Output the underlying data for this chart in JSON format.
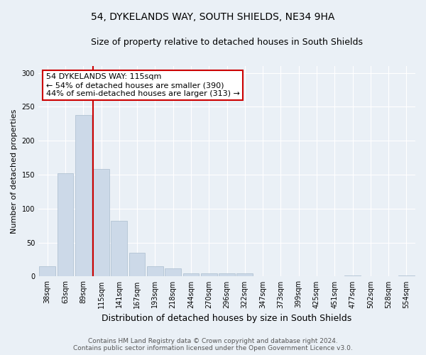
{
  "title": "54, DYKELANDS WAY, SOUTH SHIELDS, NE34 9HA",
  "subtitle": "Size of property relative to detached houses in South Shields",
  "xlabel": "Distribution of detached houses by size in South Shields",
  "ylabel": "Number of detached properties",
  "categories": [
    "38sqm",
    "63sqm",
    "89sqm",
    "115sqm",
    "141sqm",
    "167sqm",
    "193sqm",
    "218sqm",
    "244sqm",
    "270sqm",
    "296sqm",
    "322sqm",
    "347sqm",
    "373sqm",
    "399sqm",
    "425sqm",
    "451sqm",
    "477sqm",
    "502sqm",
    "528sqm",
    "554sqm"
  ],
  "values": [
    15,
    152,
    238,
    158,
    82,
    35,
    15,
    12,
    5,
    5,
    5,
    5,
    0,
    0,
    0,
    0,
    0,
    2,
    0,
    0,
    2
  ],
  "bar_color": "#ccd9e8",
  "bar_edgecolor": "#aabcce",
  "red_line_index": 3,
  "red_line_color": "#cc0000",
  "annotation_text": "54 DYKELANDS WAY: 115sqm\n← 54% of detached houses are smaller (390)\n44% of semi-detached houses are larger (313) →",
  "annotation_box_facecolor": "#ffffff",
  "annotation_box_edgecolor": "#cc0000",
  "ylim": [
    0,
    310
  ],
  "yticks": [
    0,
    50,
    100,
    150,
    200,
    250,
    300
  ],
  "background_color": "#eaf0f6",
  "grid_color": "#ffffff",
  "footer_text": "Contains HM Land Registry data © Crown copyright and database right 2024.\nContains public sector information licensed under the Open Government Licence v3.0.",
  "title_fontsize": 10,
  "subtitle_fontsize": 9,
  "xlabel_fontsize": 9,
  "ylabel_fontsize": 8,
  "tick_fontsize": 7,
  "annotation_fontsize": 8,
  "footer_fontsize": 6.5
}
